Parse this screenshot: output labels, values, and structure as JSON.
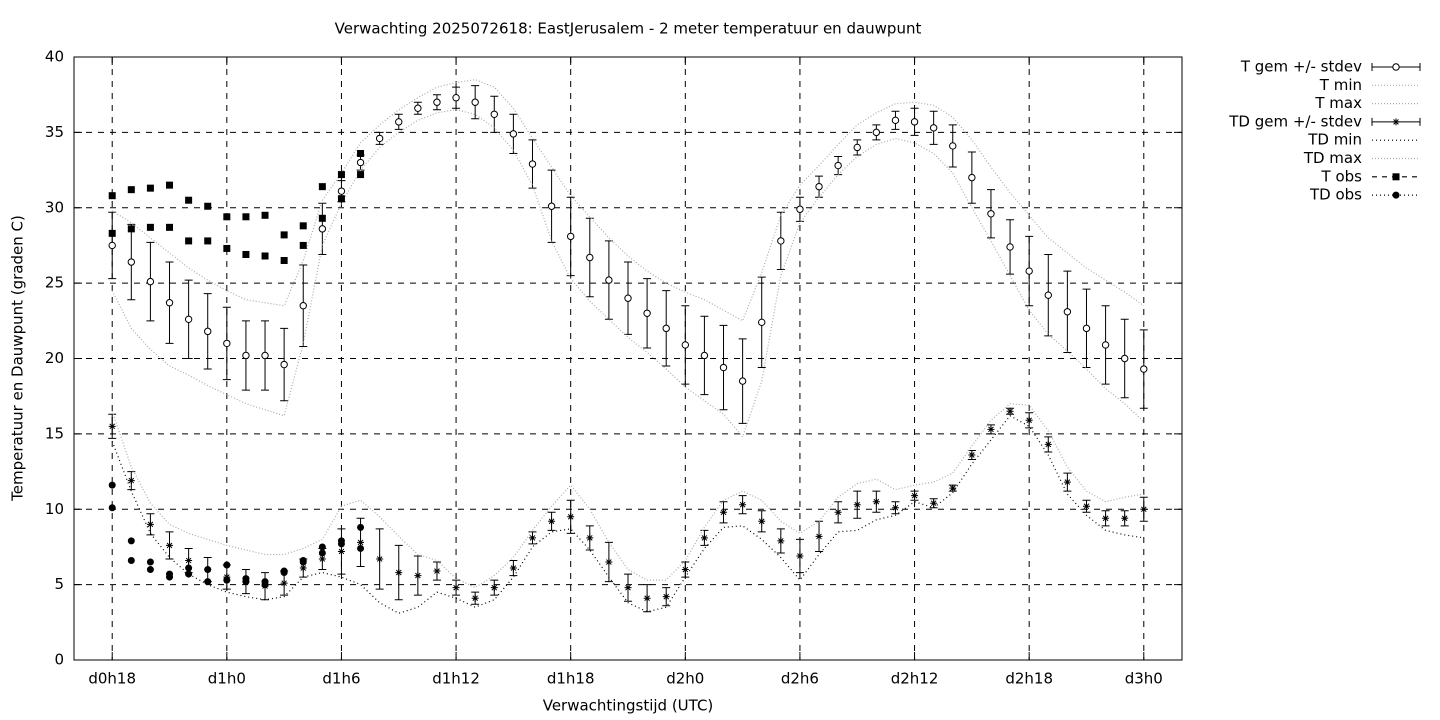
{
  "chart_data": {
    "type": "line",
    "title": "Verwachting 2025072618: EastJerusalem - 2 meter temperatuur en dauwpunt",
    "x_label": "Verwachtingstijd (UTC)",
    "y_label": "Temperatuur en Dauwpunt (graden C)",
    "xlim": [
      16,
      74
    ],
    "ylim": [
      0,
      40
    ],
    "xticks": [
      {
        "value": 18,
        "label": "d0h18"
      },
      {
        "value": 24,
        "label": "d1h0"
      },
      {
        "value": 30,
        "label": "d1h6"
      },
      {
        "value": 36,
        "label": "d1h12"
      },
      {
        "value": 42,
        "label": "d1h18"
      },
      {
        "value": 48,
        "label": "d2h0"
      },
      {
        "value": 54,
        "label": "d2h6"
      },
      {
        "value": 60,
        "label": "d2h12"
      },
      {
        "value": 66,
        "label": "d2h18"
      },
      {
        "value": 72,
        "label": "d3h0"
      }
    ],
    "yticks": [
      0,
      5,
      10,
      15,
      20,
      25,
      30,
      35,
      40
    ],
    "grid": true,
    "legend": "outside-right",
    "x": [
      18,
      19,
      20,
      21,
      22,
      23,
      24,
      25,
      26,
      27,
      28,
      29,
      30,
      31,
      32,
      33,
      34,
      35,
      36,
      37,
      38,
      39,
      40,
      41,
      42,
      43,
      44,
      45,
      46,
      47,
      48,
      49,
      50,
      51,
      52,
      53,
      54,
      55,
      56,
      57,
      58,
      59,
      60,
      61,
      62,
      63,
      64,
      65,
      66,
      67,
      68,
      69,
      70,
      71,
      72
    ],
    "series": [
      {
        "name": "T gem +/- stdev",
        "style": "errorbar",
        "marker": "circle",
        "color": "#000000",
        "values": [
          27.5,
          26.4,
          25.1,
          23.7,
          22.6,
          21.8,
          21.0,
          20.2,
          20.2,
          19.6,
          23.5,
          28.6,
          31.1,
          33.0,
          34.6,
          35.7,
          36.6,
          37.0,
          37.3,
          37.0,
          36.2,
          34.9,
          32.9,
          30.1,
          28.1,
          26.7,
          25.2,
          24.0,
          23.0,
          22.0,
          20.9,
          20.2,
          19.4,
          18.5,
          22.4,
          27.8,
          29.9,
          31.4,
          32.8,
          34.0,
          35.0,
          35.8,
          35.7,
          35.3,
          34.1,
          32.0,
          29.6,
          27.4,
          25.8,
          24.2,
          23.1,
          22.0,
          20.9,
          20.0,
          19.3
        ],
        "errors": [
          2.2,
          2.5,
          2.6,
          2.7,
          2.6,
          2.5,
          2.4,
          2.3,
          2.3,
          2.4,
          2.7,
          1.7,
          0.7,
          0.5,
          0.4,
          0.5,
          0.4,
          0.5,
          0.7,
          1.1,
          1.2,
          1.3,
          1.6,
          2.4,
          2.6,
          2.6,
          2.6,
          2.4,
          2.3,
          2.5,
          2.6,
          2.6,
          2.8,
          2.8,
          3.0,
          1.9,
          0.8,
          0.7,
          0.6,
          0.5,
          0.5,
          0.6,
          0.9,
          1.1,
          1.4,
          1.7,
          1.6,
          1.8,
          2.3,
          2.7,
          2.7,
          2.6,
          2.6,
          2.6,
          2.6
        ]
      },
      {
        "name": "T min",
        "style": "line",
        "dash": "1,2",
        "color": "#aaaaaa",
        "values": [
          24.5,
          22,
          20.6,
          19.5,
          18.9,
          18.2,
          17.6,
          17.0,
          16.6,
          16.2,
          21,
          27.5,
          30.3,
          32.5,
          34.0,
          35.0,
          35.8,
          36.3,
          36.5,
          36.2,
          35.3,
          33.8,
          31.5,
          27.8,
          25.3,
          23.8,
          22.6,
          21.4,
          20.4,
          19.3,
          18.1,
          17.2,
          16.3,
          14.8,
          18.5,
          25.5,
          29.0,
          30.7,
          32.2,
          33.4,
          34.2,
          34.6,
          34.3,
          33.6,
          32.3,
          30.0,
          27.8,
          25.5,
          23.2,
          21.6,
          20.5,
          19.3,
          18.0,
          17.0,
          15.8
        ]
      },
      {
        "name": "T max",
        "style": "line",
        "dash": "1,2",
        "color": "#aaaaaa",
        "values": [
          29.8,
          29.0,
          28.0,
          27.0,
          26.0,
          25.2,
          24.5,
          23.9,
          23.7,
          23.5,
          26.5,
          30.5,
          32.3,
          34.3,
          35.5,
          36.5,
          37.3,
          38.0,
          38.3,
          38.5,
          38.0,
          36.6,
          34.6,
          32.7,
          30.8,
          29.4,
          28.0,
          26.8,
          25.8,
          25.0,
          24.4,
          23.9,
          23.2,
          22.5,
          25.7,
          29.5,
          31.5,
          32.8,
          34.2,
          35.5,
          36.3,
          36.9,
          37.0,
          36.8,
          36.0,
          34.5,
          32.7,
          31.0,
          29.5,
          28.0,
          27.0,
          26.0,
          25.2,
          24.4,
          23.5
        ]
      },
      {
        "name": "TD gem +/- stdev",
        "style": "errorbar",
        "marker": "star",
        "color": "#000000",
        "values": [
          15.5,
          11.9,
          9.0,
          7.6,
          6.6,
          6.0,
          5.5,
          5.2,
          4.9,
          5.1,
          6.1,
          6.7,
          7.2,
          7.8,
          6.7,
          5.8,
          5.6,
          5.9,
          4.8,
          4.1,
          4.8,
          6.1,
          8.1,
          9.2,
          9.5,
          8.1,
          6.5,
          4.8,
          4.1,
          4.2,
          6.0,
          8.1,
          9.8,
          10.3,
          9.2,
          7.9,
          6.9,
          8.2,
          9.8,
          10.3,
          10.5,
          10.1,
          10.9,
          10.4,
          11.4,
          13.6,
          15.3,
          16.5,
          15.9,
          14.3,
          11.8,
          10.2,
          9.4,
          9.4,
          10.0
        ],
        "errors": [
          0.8,
          0.6,
          0.7,
          0.9,
          0.8,
          0.8,
          0.8,
          0.8,
          0.9,
          0.8,
          0.6,
          0.7,
          1.5,
          1.6,
          2.0,
          1.8,
          1.3,
          0.6,
          0.5,
          0.4,
          0.5,
          0.5,
          0.4,
          0.6,
          1.1,
          0.8,
          1.3,
          0.9,
          0.9,
          0.6,
          0.5,
          0.5,
          0.7,
          0.6,
          0.7,
          0.8,
          1.1,
          1.0,
          0.7,
          0.9,
          0.7,
          0.4,
          0.3,
          0.3,
          0.2,
          0.3,
          0.3,
          0.2,
          0.5,
          0.5,
          0.6,
          0.4,
          0.5,
          0.5,
          0.8
        ]
      },
      {
        "name": "TD min",
        "style": "line",
        "dash": "1,3",
        "color": "#000000",
        "values": [
          14.5,
          11.2,
          8.4,
          6.8,
          5.7,
          5.0,
          4.5,
          4.2,
          4.0,
          4.2,
          5.5,
          5.8,
          5.5,
          5.0,
          3.8,
          3.1,
          3.5,
          4.5,
          4.1,
          3.5,
          4.0,
          5.5,
          7.5,
          8.5,
          8.7,
          7.3,
          5.5,
          3.8,
          3.2,
          3.5,
          5.5,
          7.4,
          8.8,
          8.9,
          8.0,
          6.8,
          5.3,
          7.0,
          8.5,
          8.6,
          9.3,
          9.6,
          10.5,
          10.1,
          11.1,
          13.0,
          14.6,
          16.2,
          15.5,
          13.6,
          11.0,
          9.6,
          8.6,
          8.3,
          8.1
        ]
      },
      {
        "name": "TD max",
        "style": "line",
        "dash": "1,2",
        "color": "#aaaaaa",
        "values": [
          16.5,
          12.8,
          10.4,
          9.0,
          8.4,
          8.0,
          7.6,
          7.3,
          7.0,
          7.0,
          7.4,
          8.0,
          10.2,
          10.6,
          9.5,
          8.2,
          7.0,
          6.6,
          5.4,
          4.8,
          5.6,
          6.8,
          8.6,
          10.2,
          11.6,
          10.0,
          7.8,
          6.0,
          5.3,
          5.3,
          6.6,
          8.8,
          10.6,
          11.2,
          10.6,
          9.2,
          8.4,
          9.2,
          10.8,
          11.7,
          12.0,
          11.3,
          11.6,
          11.8,
          12.4,
          14.2,
          15.9,
          17.0,
          16.9,
          15.2,
          12.8,
          11.2,
          10.5,
          10.8,
          11.0
        ]
      },
      {
        "name": "T obs",
        "style": "points",
        "marker": "square",
        "dash": "5,5",
        "color": "#000000",
        "x": [
          18,
          18,
          19,
          19,
          20,
          20,
          21,
          21,
          22,
          22,
          23,
          23,
          24,
          24,
          25,
          25,
          26,
          26,
          27,
          27,
          28,
          28,
          29,
          29,
          30,
          30,
          31,
          31
        ],
        "values": [
          30.8,
          28.3,
          31.2,
          28.6,
          31.3,
          28.7,
          31.5,
          28.7,
          30.5,
          27.8,
          30.1,
          27.8,
          29.4,
          27.3,
          29.4,
          26.9,
          29.5,
          26.8,
          28.2,
          26.5,
          28.8,
          27.5,
          31.4,
          29.3,
          32.2,
          30.6,
          33.6,
          32.2
        ]
      },
      {
        "name": "TD obs",
        "style": "points",
        "marker": "dot",
        "dash": "1,3",
        "color": "#000000",
        "x": [
          18,
          18,
          19,
          19,
          20,
          20,
          21,
          21,
          22,
          22,
          23,
          23,
          24,
          24,
          25,
          25,
          26,
          26,
          27,
          27,
          28,
          28,
          29,
          29,
          30,
          30,
          31,
          31
        ],
        "values": [
          11.6,
          10.1,
          7.9,
          6.6,
          6.5,
          6.0,
          5.7,
          5.5,
          6.1,
          5.7,
          6.0,
          5.2,
          6.3,
          5.3,
          5.4,
          5.2,
          5.2,
          5.0,
          5.9,
          5.8,
          6.6,
          6.5,
          7.5,
          7.1,
          7.9,
          7.7,
          8.8,
          7.4
        ]
      }
    ]
  }
}
